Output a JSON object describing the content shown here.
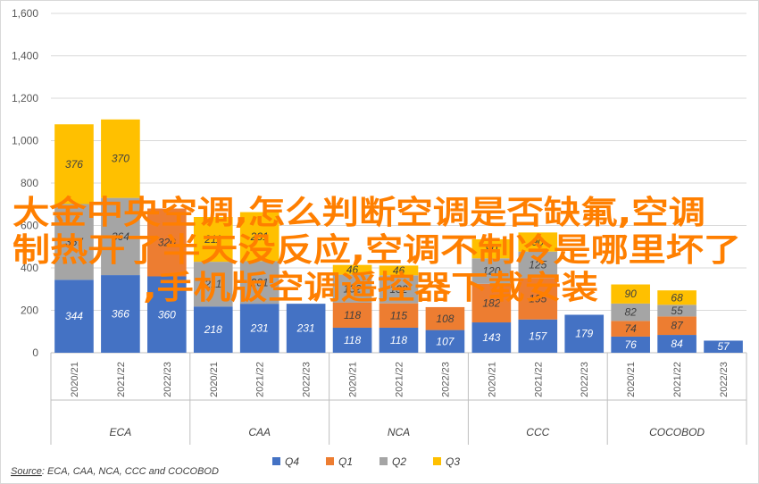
{
  "chart_data": {
    "type": "bar",
    "stacked": true,
    "groups": [
      {
        "name": "ECA",
        "categories": [
          "2020/21",
          "2021/22",
          "2022/23"
        ]
      },
      {
        "name": "CAA",
        "categories": [
          "2020/21",
          "2021/22",
          "2022/23"
        ]
      },
      {
        "name": "NCA",
        "categories": [
          "2020/21",
          "2021/22",
          "2022/23"
        ]
      },
      {
        "name": "CCC",
        "categories": [
          "2020/21",
          "2021/22",
          "2022/23"
        ]
      },
      {
        "name": "COCOBOD",
        "categories": [
          "2020/21",
          "2021/22",
          "2022/23"
        ]
      }
    ],
    "series": [
      {
        "name": "Q4",
        "color": "#4472c4",
        "labelColor": "#ffffff",
        "values": [
          344,
          366,
          360,
          218,
          231,
          231,
          118,
          118,
          107,
          143,
          157,
          179,
          76,
          84,
          57
        ]
      },
      {
        "name": "Q1",
        "color": "#ed7d31",
        "labelColor": "#404040",
        "values": [
          null,
          null,
          320,
          null,
          null,
          null,
          118,
          115,
          108,
          182,
          195,
          null,
          74,
          87,
          null
        ]
      },
      {
        "name": "Q2",
        "color": "#a5a5a5",
        "labelColor": "#404040",
        "values": [
          357,
          364,
          null,
          211,
          201,
          null,
          132,
          132,
          null,
          120,
          125,
          null,
          82,
          55,
          null
        ]
      },
      {
        "name": "Q3",
        "color": "#ffc000",
        "labelColor": "#404040",
        "values": [
          376,
          370,
          null,
          211,
          231,
          null,
          46,
          46,
          null,
          90,
          90,
          null,
          90,
          68,
          null
        ]
      }
    ],
    "ylim": [
      0,
      1600
    ],
    "yticks": [
      "0",
      "200",
      "400",
      "600",
      "800",
      "1,000",
      "1,200",
      "1,400",
      "1,600"
    ],
    "grid": true,
    "legend": {
      "position": "bottom",
      "entries": [
        "Q4",
        "Q1",
        "Q2",
        "Q3"
      ]
    },
    "source": {
      "prefix": "Source",
      "text": ": ECA, CAA, NCA, CCC and COCOBOD"
    }
  },
  "watermark": {
    "line1": "大金中央空调,怎么判断空调是否缺氟,空调",
    "line2": "制热开了半天没反应,空调不制冷是哪里坏了",
    "line3": ",手机版空调遥控器下载安装"
  }
}
